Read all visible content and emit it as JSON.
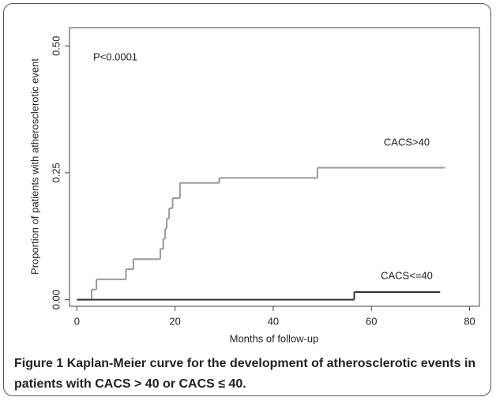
{
  "chart_data": {
    "type": "step-line",
    "ylabel": "Proportion of patients with atherosclerotic event",
    "xlabel": "Months of follow-up",
    "annotation": "P<0.0001",
    "xlim": [
      -1.5,
      82
    ],
    "xticks": [
      0,
      20,
      40,
      60,
      80
    ],
    "ylim": [
      -0.013,
      0.536
    ],
    "yticks": [
      {
        "value": 0,
        "label": "0.00"
      },
      {
        "value": 0.25,
        "label": "0.25"
      },
      {
        "value": 0.5,
        "label": "0.50"
      }
    ],
    "series": [
      {
        "name": "CACS>40",
        "color": "#9a9a9a",
        "x": [
          0,
          3,
          4,
          10,
          11.5,
          17,
          17.6,
          18,
          18.3,
          18.8,
          19.5,
          21,
          29,
          49,
          75
        ],
        "values": [
          0,
          0.02,
          0.04,
          0.06,
          0.08,
          0.1,
          0.12,
          0.14,
          0.16,
          0.18,
          0.2,
          0.23,
          0.24,
          0.26,
          0.26
        ]
      },
      {
        "name": "CACS<=40",
        "color": "#333333",
        "x": [
          0,
          56.5,
          74
        ],
        "values": [
          0,
          0.015,
          0.015
        ]
      }
    ],
    "caption_label": "Figure 1",
    "caption_text": "Kaplan-Meier curve for the development of atherosclerotic events in patients with CACS > 40 or CACS ≤ 40."
  }
}
